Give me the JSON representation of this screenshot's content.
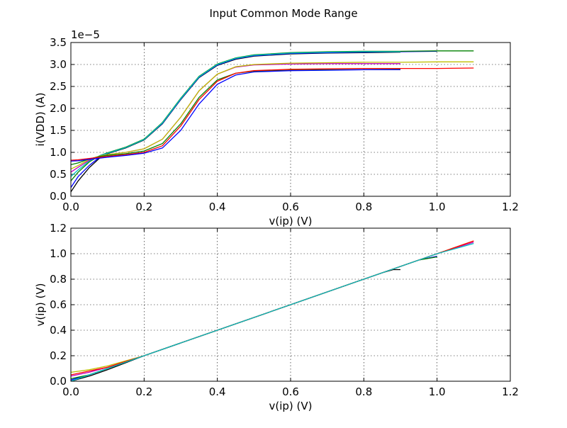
{
  "figure": {
    "title": "Input Common Mode Range"
  },
  "chart_data": [
    {
      "type": "line",
      "xlabel": "v(ip) (V)",
      "ylabel": "i(VDD) (A)",
      "offset_text": "1e−5",
      "xlim": [
        0.0,
        1.2
      ],
      "ylim": [
        0.0,
        3.5
      ],
      "xticks": [
        "0.0",
        "0.2",
        "0.4",
        "0.6",
        "0.8",
        "1.0",
        "1.2"
      ],
      "yticks": [
        "0.0",
        "0.5",
        "1.0",
        "1.5",
        "2.0",
        "2.5",
        "3.0",
        "3.5"
      ],
      "grid": true,
      "series_unit_scale": "values in units of 1e-5 A",
      "series": [
        {
          "color": "#000000",
          "x": [
            0.0,
            0.02,
            0.05,
            0.08,
            0.1,
            0.15,
            0.2,
            0.25,
            0.3,
            0.35,
            0.4,
            0.45,
            0.5,
            0.6,
            0.7,
            0.8,
            0.9
          ],
          "values": [
            0.1,
            0.35,
            0.65,
            0.88,
            0.97,
            1.1,
            1.28,
            1.65,
            2.2,
            2.7,
            2.98,
            3.12,
            3.19,
            3.24,
            3.26,
            3.27,
            3.28
          ]
        },
        {
          "color": "#0000ff",
          "x": [
            0.0,
            0.02,
            0.05,
            0.08,
            0.1,
            0.15,
            0.2,
            0.25,
            0.3,
            0.35,
            0.4,
            0.45,
            0.5,
            0.6,
            0.7,
            0.8,
            0.9,
            1.0
          ],
          "values": [
            0.2,
            0.45,
            0.7,
            0.9,
            0.98,
            1.11,
            1.29,
            1.66,
            2.21,
            2.71,
            2.99,
            3.13,
            3.2,
            3.25,
            3.27,
            3.28,
            3.29,
            3.3
          ]
        },
        {
          "color": "#008000",
          "x": [
            0.0,
            0.02,
            0.05,
            0.08,
            0.1,
            0.15,
            0.2,
            0.25,
            0.3,
            0.35,
            0.4,
            0.45,
            0.5,
            0.6,
            0.7,
            0.8,
            0.9,
            1.0,
            1.1
          ],
          "values": [
            0.35,
            0.55,
            0.78,
            0.93,
            0.99,
            1.12,
            1.3,
            1.68,
            2.23,
            2.73,
            3.01,
            3.15,
            3.22,
            3.27,
            3.29,
            3.3,
            3.3,
            3.31,
            3.31
          ]
        },
        {
          "color": "#00bfbf",
          "x": [
            0.0,
            0.02,
            0.05,
            0.08,
            0.1,
            0.15,
            0.2,
            0.25,
            0.3,
            0.35,
            0.4,
            0.45,
            0.5,
            0.6,
            0.7,
            0.8,
            0.9
          ],
          "values": [
            0.45,
            0.6,
            0.8,
            0.93,
            0.98,
            1.11,
            1.29,
            1.67,
            2.22,
            2.72,
            3.0,
            3.14,
            3.21,
            3.26,
            3.28,
            3.29,
            3.29
          ]
        },
        {
          "color": "#bf00bf",
          "x": [
            0.0,
            0.02,
            0.05,
            0.08,
            0.1,
            0.15,
            0.2,
            0.25,
            0.3,
            0.35,
            0.4,
            0.45,
            0.5,
            0.6,
            0.7,
            0.8,
            0.9
          ],
          "values": [
            0.55,
            0.66,
            0.82,
            0.92,
            0.95,
            1.0,
            1.08,
            1.3,
            1.8,
            2.4,
            2.78,
            2.94,
            2.99,
            3.01,
            3.02,
            3.02,
            3.02
          ]
        },
        {
          "color": "#bfbf00",
          "x": [
            0.0,
            0.02,
            0.05,
            0.08,
            0.1,
            0.15,
            0.2,
            0.25,
            0.3,
            0.35,
            0.4,
            0.45,
            0.5,
            0.6,
            0.7,
            0.8,
            0.9,
            1.0,
            1.1
          ],
          "values": [
            0.62,
            0.7,
            0.84,
            0.92,
            0.95,
            1.0,
            1.08,
            1.3,
            1.8,
            2.4,
            2.78,
            2.95,
            3.0,
            3.03,
            3.04,
            3.05,
            3.05,
            3.06,
            3.06
          ]
        },
        {
          "color": "#008000",
          "x": [
            0.0,
            0.02,
            0.05,
            0.08,
            0.1,
            0.15,
            0.2,
            0.25,
            0.3,
            0.35,
            0.4,
            0.45,
            0.5,
            0.6,
            0.7,
            0.8,
            0.9
          ],
          "values": [
            0.72,
            0.76,
            0.85,
            0.91,
            0.93,
            0.97,
            1.03,
            1.2,
            1.65,
            2.25,
            2.65,
            2.8,
            2.85,
            2.87,
            2.88,
            2.88,
            2.89
          ]
        },
        {
          "color": "#ff0000",
          "x": [
            0.0,
            0.02,
            0.05,
            0.08,
            0.1,
            0.15,
            0.2,
            0.25,
            0.3,
            0.35,
            0.4,
            0.45,
            0.5,
            0.6,
            0.7,
            0.8,
            0.9,
            1.0,
            1.1
          ],
          "values": [
            0.82,
            0.83,
            0.86,
            0.89,
            0.91,
            0.95,
            1.0,
            1.15,
            1.6,
            2.2,
            2.62,
            2.8,
            2.86,
            2.89,
            2.9,
            2.91,
            2.91,
            2.91,
            2.92
          ]
        },
        {
          "color": "#0000ff",
          "x": [
            0.0,
            0.02,
            0.05,
            0.08,
            0.1,
            0.15,
            0.2,
            0.25,
            0.3,
            0.35,
            0.4,
            0.45,
            0.5,
            0.6,
            0.7,
            0.8,
            0.9
          ],
          "values": [
            0.8,
            0.81,
            0.84,
            0.87,
            0.89,
            0.93,
            0.98,
            1.1,
            1.5,
            2.1,
            2.55,
            2.76,
            2.83,
            2.86,
            2.87,
            2.88,
            2.88
          ]
        }
      ]
    },
    {
      "type": "line",
      "xlabel": "v(ip) (V)",
      "ylabel": "v(ip) (V)",
      "xlim": [
        0.0,
        1.2
      ],
      "ylim": [
        0.0,
        1.2
      ],
      "xticks": [
        "0.0",
        "0.2",
        "0.4",
        "0.6",
        "0.8",
        "1.0",
        "1.2"
      ],
      "yticks": [
        "0.0",
        "0.2",
        "0.4",
        "0.6",
        "0.8",
        "1.0",
        "1.2"
      ],
      "grid": true,
      "series": [
        {
          "color": "#000000",
          "x": [
            0.0,
            0.05,
            0.1,
            0.2,
            0.4,
            0.6,
            0.8,
            0.85,
            0.88,
            0.9
          ],
          "values": [
            0.0,
            0.04,
            0.09,
            0.2,
            0.4,
            0.6,
            0.8,
            0.85,
            0.875,
            0.875
          ]
        },
        {
          "color": "#0000ff",
          "x": [
            0.0,
            0.05,
            0.1,
            0.2,
            0.4,
            0.6,
            0.8,
            0.9,
            0.95,
            1.0
          ],
          "values": [
            0.01,
            0.05,
            0.1,
            0.2,
            0.4,
            0.6,
            0.8,
            0.9,
            0.95,
            0.98
          ]
        },
        {
          "color": "#008000",
          "x": [
            0.0,
            0.05,
            0.1,
            0.2,
            0.4,
            0.6,
            0.8,
            0.9,
            0.95,
            1.0
          ],
          "values": [
            0.02,
            0.05,
            0.1,
            0.2,
            0.4,
            0.6,
            0.8,
            0.9,
            0.95,
            0.975
          ]
        },
        {
          "color": "#bf00bf",
          "x": [
            0.0,
            0.05,
            0.1,
            0.2,
            0.4,
            0.6,
            0.8,
            1.0,
            1.1
          ],
          "values": [
            0.04,
            0.07,
            0.11,
            0.2,
            0.4,
            0.6,
            0.8,
            1.0,
            1.09
          ]
        },
        {
          "color": "#bfbf00",
          "x": [
            0.0,
            0.05,
            0.1,
            0.2,
            0.4,
            0.6,
            0.8,
            1.0,
            1.1
          ],
          "values": [
            0.07,
            0.09,
            0.12,
            0.2,
            0.4,
            0.6,
            0.8,
            1.0,
            1.1
          ]
        },
        {
          "color": "#ff0000",
          "x": [
            0.0,
            0.05,
            0.1,
            0.2,
            0.4,
            0.6,
            0.8,
            1.0,
            1.1
          ],
          "values": [
            0.05,
            0.08,
            0.11,
            0.2,
            0.4,
            0.6,
            0.8,
            1.0,
            1.1
          ]
        },
        {
          "color": "#00bfbf",
          "x": [
            0.0,
            0.05,
            0.1,
            0.2,
            0.4,
            0.6,
            0.8,
            1.0,
            1.1
          ],
          "values": [
            0.0,
            0.05,
            0.1,
            0.2,
            0.4,
            0.6,
            0.8,
            1.0,
            1.08
          ]
        }
      ]
    }
  ]
}
